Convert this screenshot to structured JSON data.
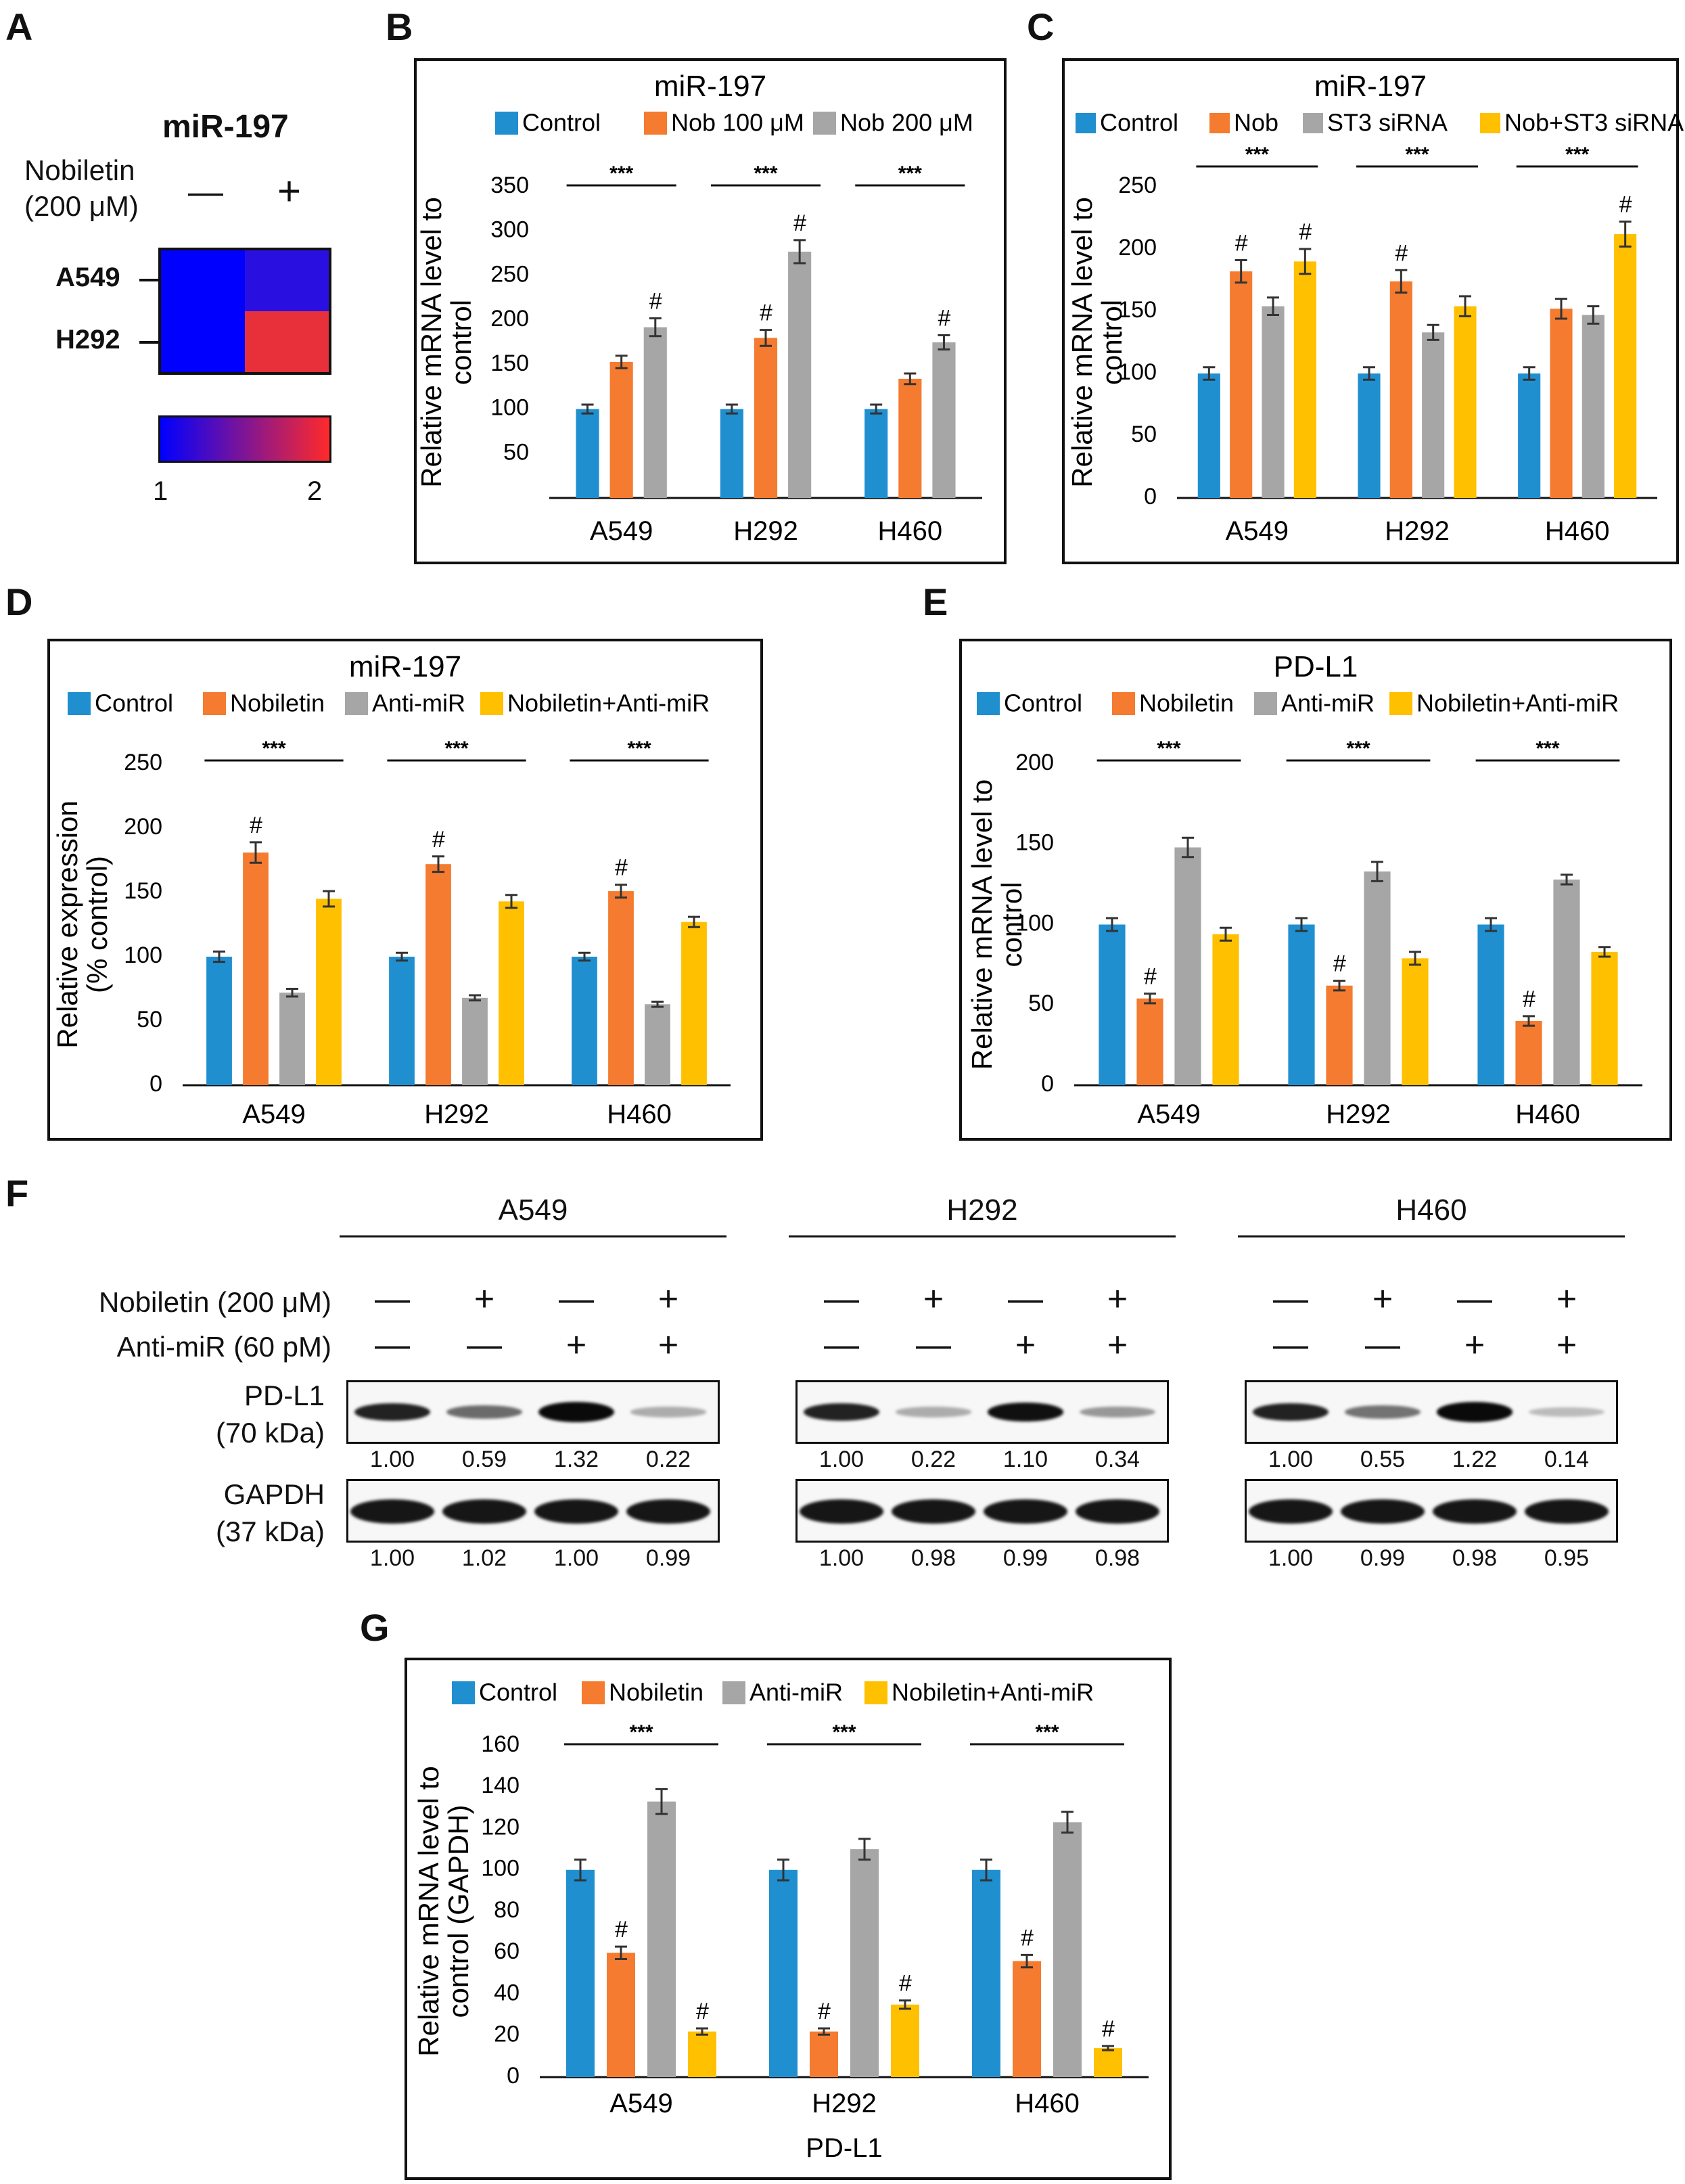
{
  "panel_labels": {
    "A": "A",
    "B": "B",
    "C": "C",
    "D": "D",
    "E": "E",
    "F": "F",
    "G": "G"
  },
  "heatmap": {
    "title": "miR-197",
    "treatment_label_1": "Nobiletin",
    "treatment_label_2": "(200 μM)",
    "col_minus": "—",
    "col_plus": "+",
    "rows": [
      "A549",
      "H292"
    ],
    "cells": [
      [
        "#0000ff",
        "#2a10e0"
      ],
      [
        "#0000ff",
        "#e8303a"
      ]
    ],
    "scale_min": "1",
    "scale_max": "2",
    "scale_from": "#0000ff",
    "scale_to": "#ff2a2a"
  },
  "colors": {
    "blue": "#1f8fd0",
    "orange": "#f47b2f",
    "gray": "#a6a6a6",
    "yellow": "#ffc000"
  },
  "chart_data": [
    {
      "id": "B",
      "type": "bar",
      "title": "miR-197",
      "ylabel_lines": [
        "Relative mRNA  level to",
        "control"
      ],
      "categories": [
        "A549",
        "H292",
        "H460"
      ],
      "yticks": [
        50,
        100,
        150,
        200,
        250,
        300,
        350
      ],
      "ylim": [
        0,
        350
      ],
      "series": [
        {
          "name": "Control",
          "color": "#1f8fd0",
          "values": [
            100,
            100,
            100
          ],
          "err": [
            5,
            5,
            5
          ],
          "hash": [
            false,
            false,
            false
          ]
        },
        {
          "name": "Nob 100 μM",
          "color": "#f47b2f",
          "values": [
            153,
            180,
            134
          ],
          "err": [
            7,
            9,
            6
          ],
          "hash": [
            false,
            true,
            false
          ]
        },
        {
          "name": "Nob 200 μM",
          "color": "#a6a6a6",
          "values": [
            192,
            277,
            175
          ],
          "err": [
            10,
            13,
            8
          ],
          "hash": [
            true,
            true,
            true
          ]
        }
      ],
      "sig": "***"
    },
    {
      "id": "C",
      "type": "bar",
      "title": "miR-197",
      "ylabel_lines": [
        "Relative mRNA  level to",
        "control"
      ],
      "categories": [
        "A549",
        "H292",
        "H460"
      ],
      "yticks": [
        0,
        50,
        100,
        150,
        200,
        250
      ],
      "ylim": [
        0,
        250
      ],
      "series": [
        {
          "name": "Control",
          "color": "#1f8fd0",
          "values": [
            100,
            100,
            100
          ],
          "err": [
            5,
            5,
            5
          ],
          "hash": [
            false,
            false,
            false
          ]
        },
        {
          "name": "Nob",
          "color": "#f47b2f",
          "values": [
            182,
            174,
            152
          ],
          "err": [
            9,
            9,
            8
          ],
          "hash": [
            true,
            true,
            false
          ]
        },
        {
          "name": "ST3 siRNA",
          "color": "#a6a6a6",
          "values": [
            154,
            133,
            147
          ],
          "err": [
            7,
            6,
            7
          ],
          "hash": [
            false,
            false,
            false
          ]
        },
        {
          "name": "Nob+ST3 siRNA",
          "color": "#ffc000",
          "values": [
            190,
            154,
            212
          ],
          "err": [
            10,
            8,
            10
          ],
          "hash": [
            true,
            false,
            true
          ]
        }
      ],
      "sig": "***"
    },
    {
      "id": "D",
      "type": "bar",
      "title": "miR-197",
      "ylabel_lines": [
        "Relative expression",
        "(% control)"
      ],
      "categories": [
        "A549",
        "H292",
        "H460"
      ],
      "yticks": [
        0,
        50,
        100,
        150,
        200,
        250
      ],
      "ylim": [
        0,
        250
      ],
      "series": [
        {
          "name": "Control",
          "color": "#1f8fd0",
          "values": [
            100,
            100,
            100
          ],
          "err": [
            4,
            3,
            3
          ],
          "hash": [
            false,
            false,
            false
          ]
        },
        {
          "name": "Nobiletin",
          "color": "#f47b2f",
          "values": [
            181,
            172,
            151
          ],
          "err": [
            8,
            6,
            5
          ],
          "hash": [
            true,
            true,
            true
          ]
        },
        {
          "name": "Anti-miR",
          "color": "#a6a6a6",
          "values": [
            72,
            68,
            63
          ],
          "err": [
            3,
            2,
            2
          ],
          "hash": [
            false,
            false,
            false
          ]
        },
        {
          "name": "Nobiletin+Anti-miR",
          "color": "#ffc000",
          "values": [
            145,
            143,
            127
          ],
          "err": [
            6,
            5,
            4
          ],
          "hash": [
            false,
            false,
            false
          ]
        }
      ],
      "sig": "***"
    },
    {
      "id": "E",
      "type": "bar",
      "title": "PD-L1",
      "ylabel_lines": [
        "Relative mRNA  level to",
        "control"
      ],
      "categories": [
        "A549",
        "H292",
        "H460"
      ],
      "yticks": [
        0,
        50,
        100,
        150,
        200
      ],
      "ylim": [
        0,
        200
      ],
      "series": [
        {
          "name": "Control",
          "color": "#1f8fd0",
          "values": [
            100,
            100,
            100
          ],
          "err": [
            4,
            4,
            4
          ],
          "hash": [
            false,
            false,
            false
          ]
        },
        {
          "name": "Nobiletin",
          "color": "#f47b2f",
          "values": [
            54,
            62,
            40
          ],
          "err": [
            3,
            3,
            3
          ],
          "hash": [
            true,
            true,
            true
          ]
        },
        {
          "name": "Anti-miR",
          "color": "#a6a6a6",
          "values": [
            148,
            133,
            128
          ],
          "err": [
            6,
            6,
            3
          ],
          "hash": [
            false,
            false,
            false
          ]
        },
        {
          "name": "Nobiletin+Anti-miR",
          "color": "#ffc000",
          "values": [
            94,
            79,
            83
          ],
          "err": [
            4,
            4,
            3
          ],
          "hash": [
            false,
            false,
            false
          ]
        }
      ],
      "sig": "***"
    },
    {
      "id": "G",
      "type": "bar",
      "title": "",
      "ylabel_lines": [
        "Relative mRNA level to",
        "control (GAPDH)"
      ],
      "xlabel": "PD-L1",
      "categories": [
        "A549",
        "H292",
        "H460"
      ],
      "yticks": [
        0,
        20,
        40,
        60,
        80,
        100,
        120,
        140,
        160
      ],
      "ylim": [
        0,
        160
      ],
      "series": [
        {
          "name": "Control",
          "color": "#1f8fd0",
          "values": [
            100,
            100,
            100
          ],
          "err": [
            5,
            5,
            5
          ],
          "hash": [
            false,
            false,
            false
          ]
        },
        {
          "name": "Nobiletin",
          "color": "#f47b2f",
          "values": [
            60,
            22,
            56
          ],
          "err": [
            3,
            1.5,
            3
          ],
          "hash": [
            true,
            true,
            true
          ]
        },
        {
          "name": "Anti-miR",
          "color": "#a6a6a6",
          "values": [
            133,
            110,
            123
          ],
          "err": [
            6,
            5,
            5
          ],
          "hash": [
            false,
            false,
            false
          ]
        },
        {
          "name": "Nobiletin+Anti-miR",
          "color": "#ffc000",
          "values": [
            22,
            35,
            14
          ],
          "err": [
            1.5,
            2,
            1
          ],
          "hash": [
            true,
            true,
            true
          ]
        }
      ],
      "sig": "***"
    }
  ],
  "western": {
    "row_labels": {
      "nob": "Nobiletin (200 μM)",
      "anti": "Anti-miR (60 pM)",
      "pdl1_1": "PD-L1",
      "pdl1_2": "(70 kDa)",
      "gapdh_1": "GAPDH",
      "gapdh_2": "(37 kDa)"
    },
    "signs": {
      "minus": "—",
      "plus": "+"
    },
    "nob_pattern": [
      "-",
      "+",
      "-",
      "+"
    ],
    "anti_pattern": [
      "-",
      "-",
      "+",
      "+"
    ],
    "groups": [
      {
        "name": "A549",
        "pdl1": [
          "1.00",
          "0.59",
          "1.32",
          "0.22"
        ],
        "gapdh": [
          "1.00",
          "1.02",
          "1.00",
          "0.99"
        ]
      },
      {
        "name": "H292",
        "pdl1": [
          "1.00",
          "0.22",
          "1.10",
          "0.34"
        ],
        "gapdh": [
          "1.00",
          "0.98",
          "0.99",
          "0.98"
        ]
      },
      {
        "name": "H460",
        "pdl1": [
          "1.00",
          "0.55",
          "1.22",
          "0.14"
        ],
        "gapdh": [
          "1.00",
          "0.99",
          "0.98",
          "0.95"
        ]
      }
    ]
  }
}
